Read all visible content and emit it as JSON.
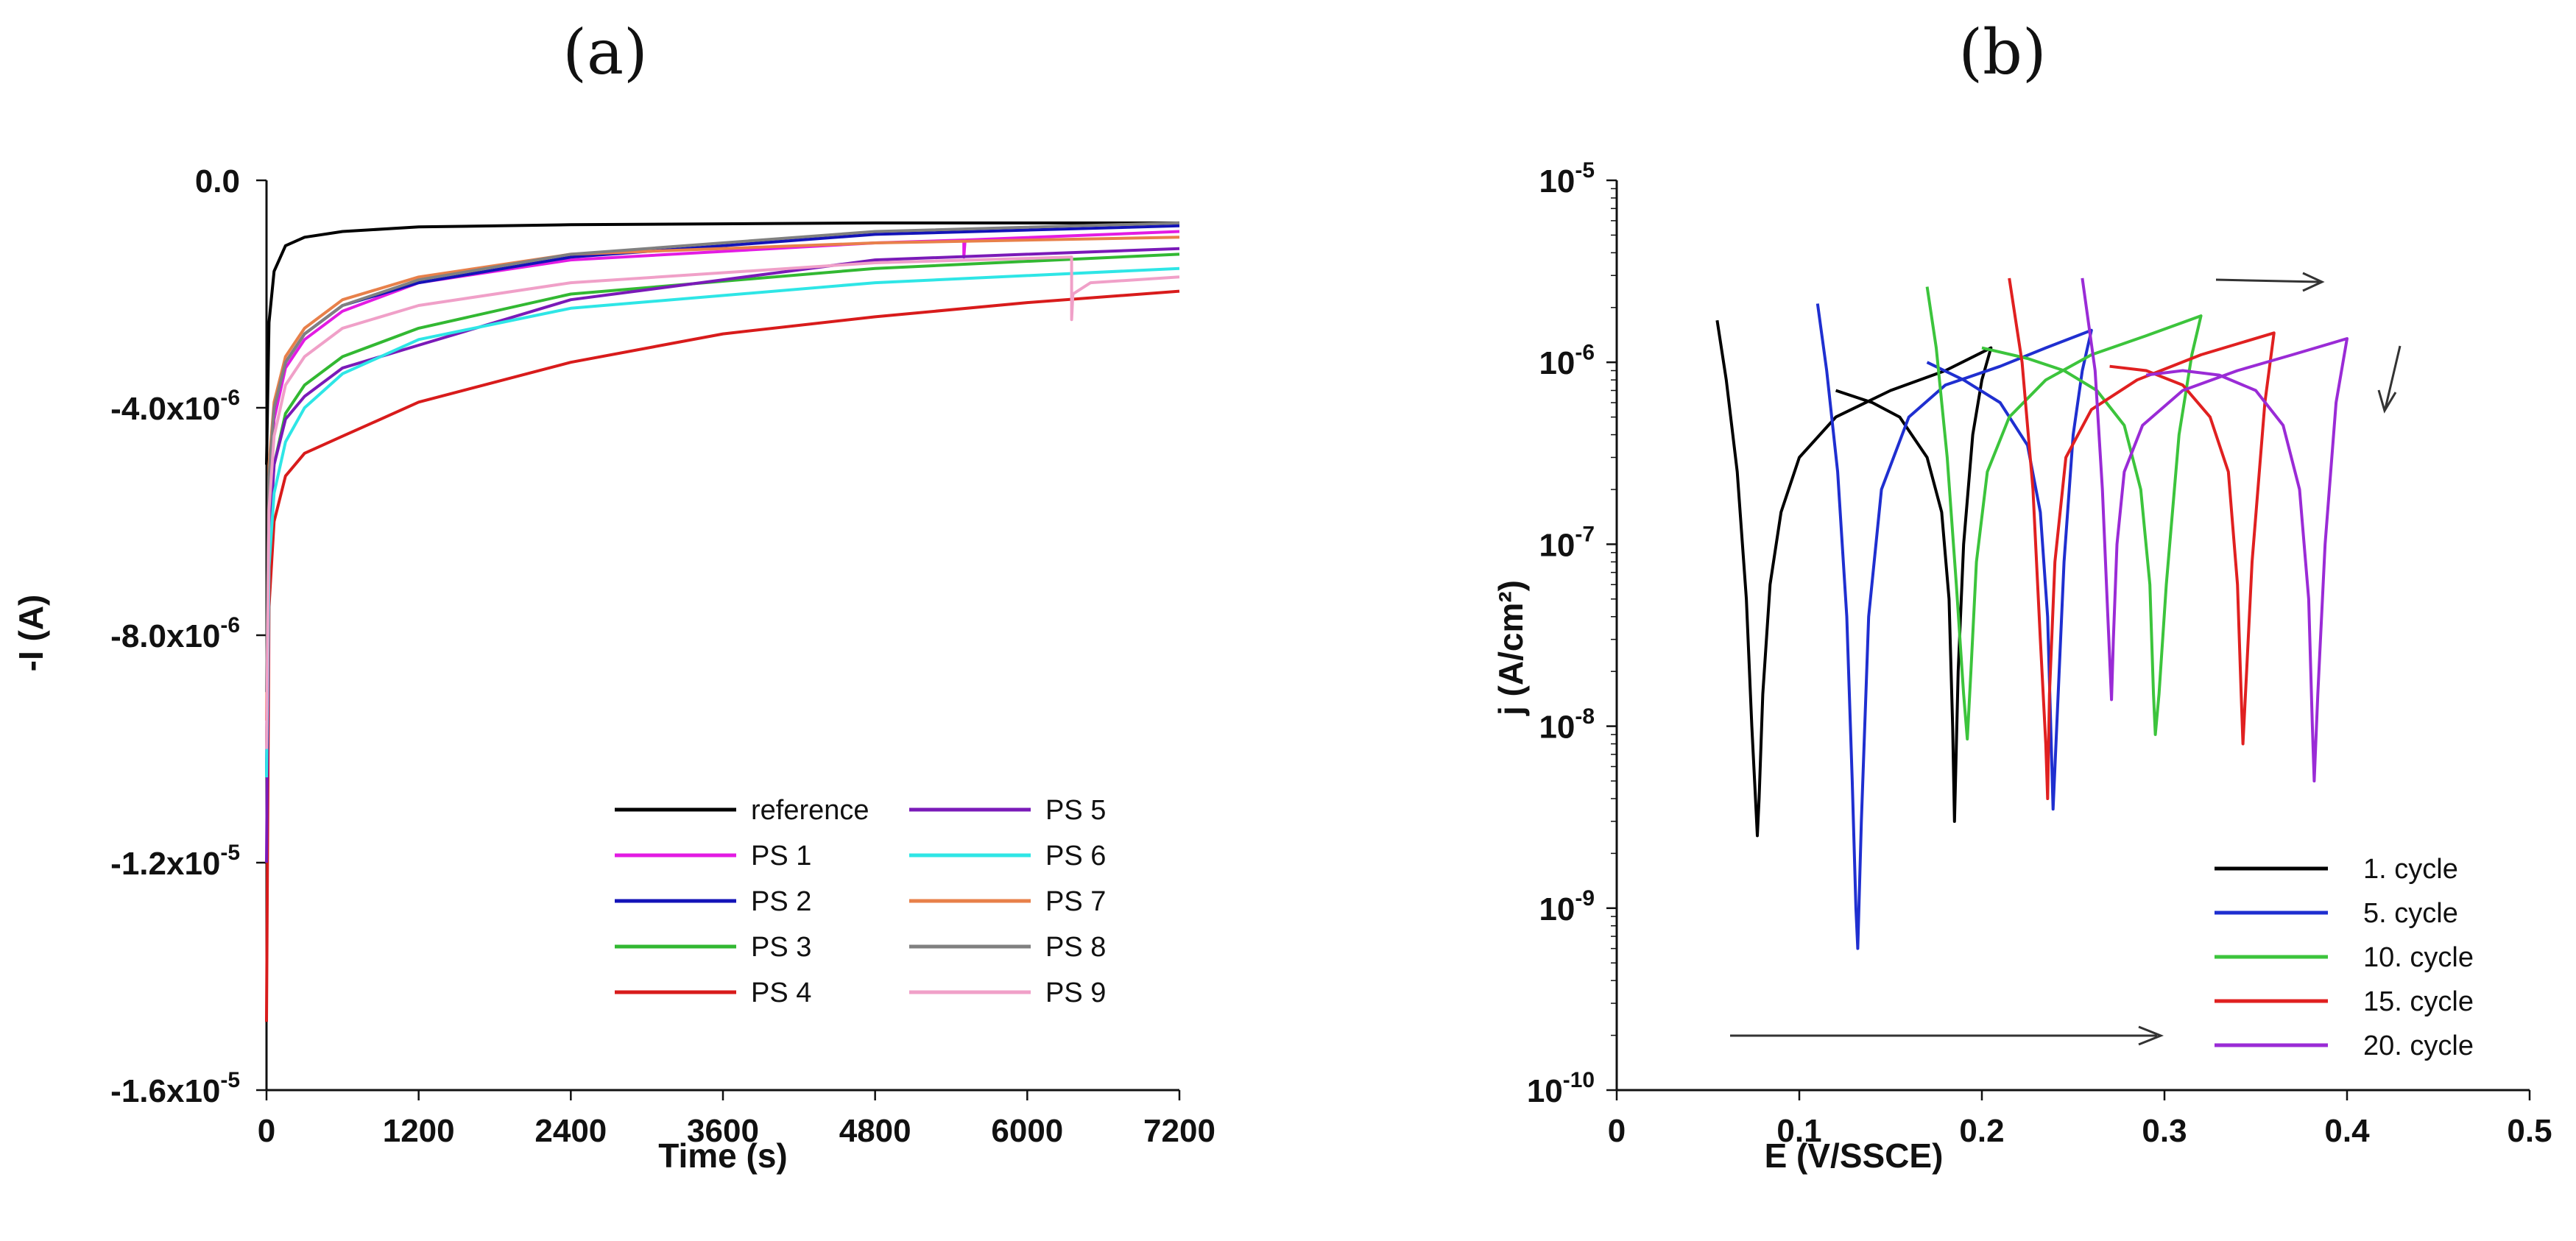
{
  "chart_data": [
    {
      "type": "line",
      "panel_label": "(a)",
      "title": "(a)",
      "xlabel": "Time (s)",
      "ylabel": "-I (A)",
      "xlim": [
        0,
        7200
      ],
      "ylim": [
        -1.6e-05,
        0
      ],
      "xticks": [
        0,
        1200,
        2400,
        3600,
        4800,
        6000,
        7200
      ],
      "xtick_labels": [
        "0",
        "1200",
        "2400",
        "3600",
        "4800",
        "6000",
        "7200"
      ],
      "yticks": [
        0,
        -4e-06,
        -8e-06,
        -1.2e-05,
        -1.6e-05
      ],
      "ytick_labels": [
        {
          "mant": "0.0",
          "exp": ""
        },
        {
          "mant": "-4.0x10",
          "exp": "-6"
        },
        {
          "mant": "-8.0x10",
          "exp": "-6"
        },
        {
          "mant": "-1.2x10",
          "exp": "-5"
        },
        {
          "mant": "-1.6x10",
          "exp": "-5"
        }
      ],
      "legend_position": "bottom-right",
      "series": [
        {
          "name": "reference",
          "color": "#000000",
          "x": [
            0,
            20,
            60,
            150,
            300,
            600,
            1200,
            2400,
            4800,
            7200
          ],
          "y": [
            -5e-06,
            -2.5e-06,
            -1.6e-06,
            -1.15e-06,
            -1e-06,
            -9e-07,
            -8.2e-07,
            -7.8e-07,
            -7.5e-07,
            -7.5e-07
          ]
        },
        {
          "name": "PS 1",
          "color": "#e31be3",
          "x": [
            0,
            20,
            60,
            150,
            300,
            600,
            1200,
            2400,
            4800,
            5500,
            5500,
            5510,
            7200
          ],
          "y": [
            -1e-05,
            -5.5e-06,
            -4.2e-06,
            -3.3e-06,
            -2.8e-06,
            -2.3e-06,
            -1.8e-06,
            -1.4e-06,
            -1.1e-06,
            -1.05e-06,
            -1.35e-06,
            -1.05e-06,
            -9e-07
          ]
        },
        {
          "name": "PS 2",
          "color": "#1313b8",
          "x": [
            0,
            20,
            60,
            150,
            300,
            600,
            1200,
            2400,
            4800,
            7200
          ],
          "y": [
            -1.05e-05,
            -5.2e-06,
            -4e-06,
            -3.2e-06,
            -2.7e-06,
            -2.2e-06,
            -1.8e-06,
            -1.35e-06,
            -9.5e-07,
            -8e-07
          ]
        },
        {
          "name": "PS 3",
          "color": "#32b832",
          "x": [
            0,
            20,
            60,
            150,
            300,
            600,
            1200,
            2400,
            4800,
            7200
          ],
          "y": [
            -1e-05,
            -6.2e-06,
            -5e-06,
            -4.1e-06,
            -3.6e-06,
            -3.1e-06,
            -2.6e-06,
            -2e-06,
            -1.55e-06,
            -1.3e-06
          ]
        },
        {
          "name": "PS 4",
          "color": "#d81b1b",
          "x": [
            0,
            20,
            60,
            150,
            300,
            600,
            800,
            1200,
            2400,
            3600,
            4800,
            6000,
            7200
          ],
          "y": [
            -1.48e-05,
            -7.5e-06,
            -6e-06,
            -5.2e-06,
            -4.8e-06,
            -4.5e-06,
            -4.3e-06,
            -3.9e-06,
            -3.2e-06,
            -2.7e-06,
            -2.4e-06,
            -2.15e-06,
            -1.95e-06
          ]
        },
        {
          "name": "PS 5",
          "color": "#7a1ab8",
          "x": [
            0,
            20,
            60,
            150,
            300,
            600,
            1200,
            2400,
            4800,
            7200
          ],
          "y": [
            -1.2e-05,
            -6.5e-06,
            -5e-06,
            -4.2e-06,
            -3.8e-06,
            -3.3e-06,
            -2.9e-06,
            -2.1e-06,
            -1.4e-06,
            -1.2e-06
          ]
        },
        {
          "name": "PS 6",
          "color": "#2ee6e6",
          "x": [
            0,
            20,
            60,
            150,
            300,
            600,
            1200,
            2400,
            4800,
            7200
          ],
          "y": [
            -1.05e-05,
            -6.8e-06,
            -5.5e-06,
            -4.6e-06,
            -4e-06,
            -3.4e-06,
            -2.8e-06,
            -2.25e-06,
            -1.8e-06,
            -1.55e-06
          ]
        },
        {
          "name": "PS 7",
          "color": "#e8804a",
          "x": [
            0,
            20,
            60,
            150,
            300,
            600,
            1200,
            2400,
            4800,
            7200
          ],
          "y": [
            -9.5e-06,
            -5e-06,
            -3.9e-06,
            -3.1e-06,
            -2.6e-06,
            -2.1e-06,
            -1.7e-06,
            -1.3e-06,
            -1.1e-06,
            -1e-06
          ]
        },
        {
          "name": "PS 8",
          "color": "#808080",
          "x": [
            0,
            20,
            60,
            150,
            300,
            600,
            1200,
            2400,
            4800,
            7200
          ],
          "y": [
            -9e-06,
            -5.2e-06,
            -4e-06,
            -3.2e-06,
            -2.7e-06,
            -2.2e-06,
            -1.75e-06,
            -1.3e-06,
            -9e-07,
            -7.5e-07
          ]
        },
        {
          "name": "PS 9",
          "color": "#f0a0c8",
          "x": [
            0,
            20,
            60,
            150,
            300,
            600,
            1200,
            2400,
            4800,
            6350,
            6350,
            6360,
            6500,
            7200
          ],
          "y": [
            -1e-05,
            -5.8e-06,
            -4.5e-06,
            -3.6e-06,
            -3.1e-06,
            -2.6e-06,
            -2.2e-06,
            -1.8e-06,
            -1.45e-06,
            -1.35e-06,
            -2.45e-06,
            -2e-06,
            -1.8e-06,
            -1.7e-06
          ]
        }
      ]
    },
    {
      "type": "line",
      "panel_label": "(b)",
      "title": "(b)",
      "xlabel": "E (V/SSCE)",
      "ylabel": "j (A/cm²)",
      "xscale": "linear",
      "yscale": "log",
      "xlim": [
        0,
        0.5
      ],
      "ylim": [
        1e-10,
        1e-05
      ],
      "xticks": [
        0,
        0.1,
        0.2,
        0.3,
        0.4,
        0.5
      ],
      "xtick_labels": [
        "0",
        "0.1",
        "0.2",
        "0.3",
        "0.4",
        "0.5"
      ],
      "yticks": [
        1e-10,
        1e-09,
        1e-08,
        1e-07,
        1e-06,
        1e-05
      ],
      "ytick_labels": [
        {
          "mant": "10",
          "exp": "-10"
        },
        {
          "mant": "10",
          "exp": "-9"
        },
        {
          "mant": "10",
          "exp": "-8"
        },
        {
          "mant": "10",
          "exp": "-7"
        },
        {
          "mant": "10",
          "exp": "-6"
        },
        {
          "mant": "10",
          "exp": "-5"
        }
      ],
      "legend_position": "bottom-right",
      "series": [
        {
          "name": "1. cycle",
          "color": "#000000",
          "x": [
            0.055,
            0.06,
            0.066,
            0.071,
            0.074,
            0.076,
            0.077,
            0.078,
            0.08,
            0.084,
            0.09,
            0.1,
            0.12,
            0.15,
            0.18,
            0.205,
            0.2,
            0.195,
            0.19,
            0.187,
            0.185,
            0.184,
            0.182,
            0.178,
            0.17,
            0.155,
            0.14,
            0.12
          ],
          "y": [
            1.7e-06,
            8e-07,
            2.5e-07,
            5e-08,
            1e-08,
            4e-09,
            2.5e-09,
            4e-09,
            1.5e-08,
            6e-08,
            1.5e-07,
            3e-07,
            5e-07,
            7e-07,
            9e-07,
            1.2e-06,
            8e-07,
            4e-07,
            1e-07,
            2e-08,
            3e-09,
            1e-08,
            5e-08,
            1.5e-07,
            3e-07,
            5e-07,
            6e-07,
            7e-07
          ]
        },
        {
          "name": "5. cycle",
          "color": "#1f2fd0",
          "x": [
            0.11,
            0.115,
            0.121,
            0.126,
            0.129,
            0.131,
            0.132,
            0.134,
            0.138,
            0.145,
            0.16,
            0.18,
            0.21,
            0.235,
            0.26,
            0.255,
            0.25,
            0.245,
            0.241,
            0.239,
            0.238,
            0.236,
            0.232,
            0.225,
            0.21,
            0.19,
            0.17
          ],
          "y": [
            2.1e-06,
            9e-07,
            2.5e-07,
            4e-08,
            5e-09,
            1e-09,
            6e-10,
            3e-09,
            4e-08,
            2e-07,
            5e-07,
            7.5e-07,
            9.5e-07,
            1.2e-06,
            1.5e-06,
            9e-07,
            4e-07,
            8e-08,
            1e-08,
            3.5e-09,
            8e-09,
            4e-08,
            1.5e-07,
            3.5e-07,
            6e-07,
            8e-07,
            1e-06
          ]
        },
        {
          "name": "10. cycle",
          "color": "#3cc43c",
          "x": [
            0.17,
            0.175,
            0.181,
            0.186,
            0.19,
            0.192,
            0.194,
            0.197,
            0.203,
            0.215,
            0.235,
            0.26,
            0.29,
            0.32,
            0.315,
            0.308,
            0.301,
            0.297,
            0.295,
            0.294,
            0.292,
            0.287,
            0.278,
            0.263,
            0.245,
            0.225,
            0.2
          ],
          "y": [
            2.6e-06,
            1.2e-06,
            3e-07,
            6e-08,
            1.5e-08,
            8.5e-09,
            2e-08,
            8e-08,
            2.5e-07,
            5e-07,
            8e-07,
            1.1e-06,
            1.4e-06,
            1.8e-06,
            1.1e-06,
            4e-07,
            6e-08,
            1.5e-08,
            9e-09,
            1.5e-08,
            6e-08,
            2e-07,
            4.5e-07,
            7e-07,
            9e-07,
            1.05e-06,
            1.2e-06
          ]
        },
        {
          "name": "15. cycle",
          "color": "#e02020",
          "x": [
            0.215,
            0.222,
            0.228,
            0.232,
            0.235,
            0.236,
            0.237,
            0.24,
            0.246,
            0.26,
            0.285,
            0.32,
            0.36,
            0.355,
            0.348,
            0.345,
            0.343,
            0.342,
            0.34,
            0.335,
            0.325,
            0.31,
            0.29,
            0.27
          ],
          "y": [
            2.9e-06,
            1e-06,
            2e-07,
            3e-08,
            8e-09,
            4e-09,
            1.5e-08,
            8e-08,
            3e-07,
            5.5e-07,
            8e-07,
            1.1e-06,
            1.45e-06,
            6e-07,
            8e-08,
            2e-08,
            8e-09,
            1.5e-08,
            6e-08,
            2.5e-07,
            5e-07,
            7.5e-07,
            9e-07,
            9.5e-07
          ]
        },
        {
          "name": "20. cycle",
          "color": "#9a2bd6",
          "x": [
            0.255,
            0.262,
            0.266,
            0.269,
            0.271,
            0.272,
            0.274,
            0.278,
            0.288,
            0.31,
            0.34,
            0.37,
            0.4,
            0.394,
            0.388,
            0.384,
            0.382,
            0.381,
            0.379,
            0.374,
            0.365,
            0.35,
            0.33,
            0.31,
            0.29
          ],
          "y": [
            2.9e-06,
            9e-07,
            2e-07,
            4e-08,
            1.4e-08,
            3e-08,
            1e-07,
            2.5e-07,
            4.5e-07,
            7e-07,
            9e-07,
            1.1e-06,
            1.35e-06,
            6e-07,
            1e-07,
            1.5e-08,
            5e-09,
            1e-08,
            5e-08,
            2e-07,
            4.5e-07,
            7e-07,
            8.5e-07,
            9e-07,
            8.5e-07
          ]
        }
      ]
    }
  ]
}
